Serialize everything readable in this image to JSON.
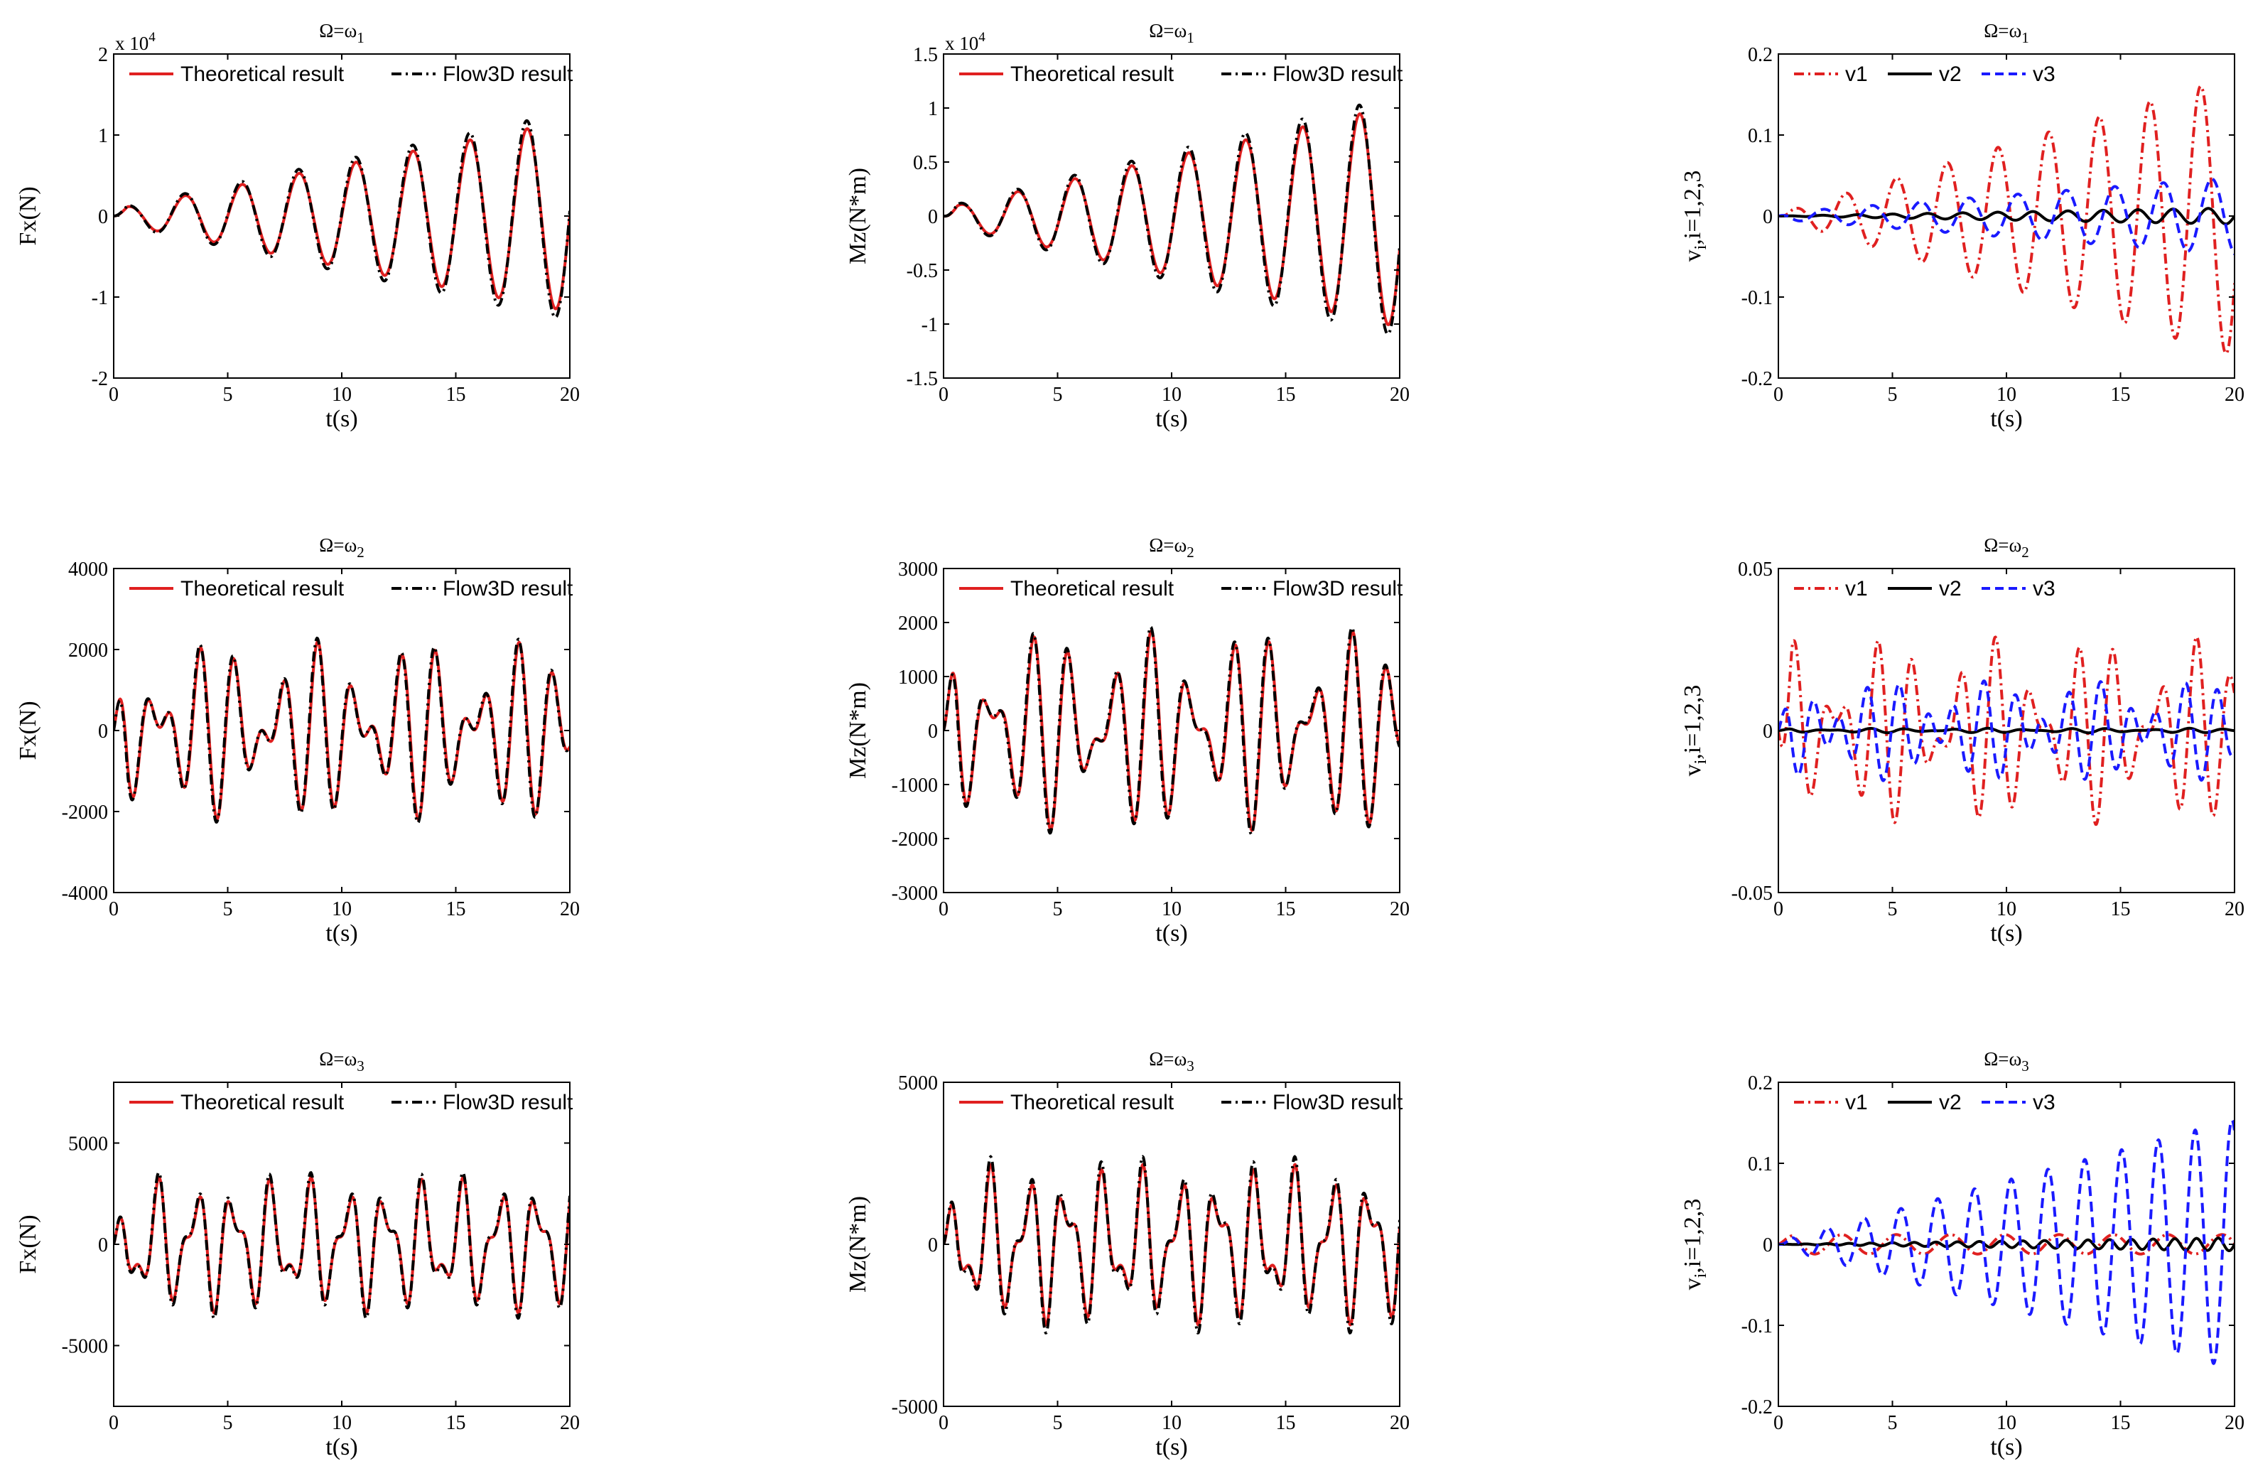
{
  "figure": {
    "rows": 3,
    "cols": 3,
    "row_titles": [
      {
        "base": "Ω=ω",
        "sub": "1"
      },
      {
        "base": "Ω=ω",
        "sub": "2"
      },
      {
        "base": "Ω=ω",
        "sub": "3"
      }
    ]
  },
  "colors": {
    "theoretical": "#e02020",
    "flow3d": "#000000",
    "v1": "#e02020",
    "v2": "#000000",
    "v3": "#1a1aff"
  },
  "chart_data": [
    {
      "id": "fx-1",
      "type": "line",
      "title": "Ω=ω1",
      "xlabel": "t(s)",
      "ylabel": "Fx(N)",
      "xlim": [
        0,
        20
      ],
      "ylim": [
        -2,
        2
      ],
      "yscale_label": "x 10",
      "yscale_exp": "4",
      "xticks": [
        "0",
        "5",
        "10",
        "15",
        "20"
      ],
      "yticks": [
        "-2",
        "-1",
        "0",
        "1",
        "2"
      ],
      "legend": [
        "Theoretical result",
        "Flow3D result"
      ],
      "series": [
        {
          "name": "Theoretical result",
          "style": "solid",
          "color": "#e02020",
          "model": {
            "kind": "growing_sine",
            "a0": 0.08,
            "growth": 0.055,
            "freq": 0.4,
            "phase": 0.0
          }
        },
        {
          "name": "Flow3D result",
          "style": "dashdot",
          "color": "#000000",
          "model": {
            "kind": "growing_sine",
            "a0": 0.09,
            "growth": 0.06,
            "freq": 0.4,
            "phase": 0.05
          }
        }
      ]
    },
    {
      "id": "mz-1",
      "type": "line",
      "title": "Ω=ω1",
      "xlabel": "t(s)",
      "ylabel": "Mz(N*m)",
      "xlim": [
        0,
        20
      ],
      "ylim": [
        -1.5,
        1.5
      ],
      "yscale_label": "x 10",
      "yscale_exp": "4",
      "xticks": [
        "0",
        "5",
        "10",
        "15",
        "20"
      ],
      "yticks": [
        "-1.5",
        "-1",
        "-0.5",
        "0",
        "0.5",
        "1",
        "1.5"
      ],
      "legend": [
        "Theoretical result",
        "Flow3D result"
      ],
      "series": [
        {
          "name": "Theoretical result",
          "style": "solid",
          "color": "#e02020",
          "model": {
            "kind": "growing_sine",
            "a0": 0.07,
            "growth": 0.048,
            "freq": 0.4,
            "phase": -0.3
          }
        },
        {
          "name": "Flow3D result",
          "style": "dashdot",
          "color": "#000000",
          "model": {
            "kind": "growing_sine",
            "a0": 0.08,
            "growth": 0.052,
            "freq": 0.4,
            "phase": -0.25
          }
        }
      ]
    },
    {
      "id": "v-1",
      "type": "line",
      "title": "Ω=ω1",
      "xlabel": "t(s)",
      "ylabel": "vi,i=1,2,3",
      "xlim": [
        0,
        20
      ],
      "ylim": [
        -0.2,
        0.2
      ],
      "xticks": [
        "0",
        "5",
        "10",
        "15",
        "20"
      ],
      "yticks": [
        "-0.2",
        "-0.1",
        "0",
        "0.1",
        "0.2"
      ],
      "legend": [
        "v1",
        "v2",
        "v3"
      ],
      "series": [
        {
          "name": "v1",
          "style": "dashdot",
          "color": "#e02020",
          "model": {
            "kind": "growing_sine",
            "a0": 0.003,
            "growth": 0.0085,
            "freq": 0.45,
            "phase": -0.5
          }
        },
        {
          "name": "v2",
          "style": "solid",
          "color": "#000000",
          "model": {
            "kind": "growing_sine",
            "a0": 0.0,
            "growth": 0.0005,
            "freq": 0.65,
            "phase": 0.0
          }
        },
        {
          "name": "v3",
          "style": "dashed",
          "color": "#1a1aff",
          "model": {
            "kind": "growing_sine",
            "a0": 0.004,
            "growth": 0.0022,
            "freq": 0.47,
            "phase": 2.0
          }
        }
      ]
    },
    {
      "id": "fx-2",
      "type": "line",
      "title": "Ω=ω2",
      "xlabel": "t(s)",
      "ylabel": "Fx(N)",
      "xlim": [
        0,
        20
      ],
      "ylim": [
        -4000,
        4000
      ],
      "xticks": [
        "0",
        "5",
        "10",
        "15",
        "20"
      ],
      "yticks": [
        "-4000",
        "-2000",
        "0",
        "2000",
        "4000"
      ],
      "legend": [
        "Theoretical result",
        "Flow3D result"
      ],
      "series": [
        {
          "name": "Theoretical result",
          "style": "solid",
          "color": "#e02020",
          "model": {
            "kind": "beat",
            "a1": 1150,
            "f1": 0.57,
            "a2": 1050,
            "f2": 0.79,
            "phase": 0.9
          }
        },
        {
          "name": "Flow3D result",
          "style": "dashdot",
          "color": "#000000",
          "model": {
            "kind": "beat",
            "a1": 1200,
            "f1": 0.57,
            "a2": 1080,
            "f2": 0.79,
            "phase": 1.0
          }
        }
      ]
    },
    {
      "id": "mz-2",
      "type": "line",
      "title": "Ω=ω2",
      "xlabel": "t(s)",
      "ylabel": "Mz(N*m)",
      "xlim": [
        0,
        20
      ],
      "ylim": [
        -3000,
        3000
      ],
      "xticks": [
        "0",
        "5",
        "10",
        "15",
        "20"
      ],
      "yticks": [
        "-3000",
        "-2000",
        "-1000",
        "0",
        "1000",
        "2000",
        "3000"
      ],
      "legend": [
        "Theoretical result",
        "Flow3D result"
      ],
      "series": [
        {
          "name": "Theoretical result",
          "style": "solid",
          "color": "#e02020",
          "model": {
            "kind": "beat",
            "a1": 1050,
            "f1": 0.57,
            "a2": 800,
            "f2": 0.79,
            "phase": 0.3
          }
        },
        {
          "name": "Flow3D result",
          "style": "dashdot",
          "color": "#000000",
          "model": {
            "kind": "beat",
            "a1": 1100,
            "f1": 0.57,
            "a2": 820,
            "f2": 0.79,
            "phase": 0.4
          }
        }
      ]
    },
    {
      "id": "v-2",
      "type": "line",
      "title": "Ω=ω2",
      "xlabel": "t(s)",
      "ylabel": "vi,i=1,2,3",
      "xlim": [
        0,
        20
      ],
      "ylim": [
        -0.05,
        0.05
      ],
      "xticks": [
        "0",
        "5",
        "10",
        "15",
        "20"
      ],
      "yticks": [
        "-0.05",
        "0",
        "0.05"
      ],
      "legend": [
        "v1",
        "v2",
        "v3"
      ],
      "series": [
        {
          "name": "v1",
          "style": "dashdot",
          "color": "#e02020",
          "model": {
            "kind": "beat",
            "a1": 0.016,
            "f1": 0.57,
            "a2": 0.013,
            "f2": 0.79,
            "phase": -1.2
          }
        },
        {
          "name": "v2",
          "style": "solid",
          "color": "#000000",
          "model": {
            "kind": "beat",
            "a1": 0.0004,
            "f1": 0.57,
            "a2": 0.0003,
            "f2": 0.79,
            "phase": 0.0
          }
        },
        {
          "name": "v3",
          "style": "dashed",
          "color": "#1a1aff",
          "model": {
            "kind": "beat",
            "a1": 0.0095,
            "f1": 0.79,
            "a2": 0.006,
            "f2": 0.57,
            "phase": 0.7
          }
        }
      ]
    },
    {
      "id": "fx-3",
      "type": "line",
      "title": "Ω=ω3",
      "xlabel": "t(s)",
      "ylabel": "Fx(N)",
      "xlim": [
        0,
        20
      ],
      "ylim": [
        -8000,
        8000
      ],
      "xticks": [
        "0",
        "5",
        "10",
        "15",
        "20"
      ],
      "yticks": [
        "-5000",
        "0",
        "5000"
      ],
      "legend": [
        "Theoretical result",
        "Flow3D result"
      ],
      "series": [
        {
          "name": "Theoretical result",
          "style": "solid",
          "color": "#e02020",
          "model": {
            "kind": "beat",
            "a1": 2200,
            "f1": 0.6,
            "a2": 1200,
            "f2": 1.05,
            "phase": 0.6
          }
        },
        {
          "name": "Flow3D result",
          "style": "dashdot",
          "color": "#000000",
          "model": {
            "kind": "beat",
            "a1": 2350,
            "f1": 0.6,
            "a2": 1300,
            "f2": 1.05,
            "phase": 0.65
          }
        }
      ]
    },
    {
      "id": "mz-3",
      "type": "line",
      "title": "Ω=ω3",
      "xlabel": "t(s)",
      "ylabel": "Mz(N*m)",
      "xlim": [
        0,
        20
      ],
      "ylim": [
        -5000,
        5000
      ],
      "xticks": [
        "0",
        "5",
        "10",
        "15",
        "20"
      ],
      "yticks": [
        "-5000",
        "0",
        "5000"
      ],
      "legend": [
        "Theoretical result",
        "Flow3D result"
      ],
      "series": [
        {
          "name": "Theoretical result",
          "style": "solid",
          "color": "#e02020",
          "model": {
            "kind": "beat",
            "a1": 1600,
            "f1": 0.6,
            "a2": 900,
            "f2": 1.05,
            "phase": 0.2
          }
        },
        {
          "name": "Flow3D result",
          "style": "dashdot",
          "color": "#000000",
          "model": {
            "kind": "beat",
            "a1": 1750,
            "f1": 0.6,
            "a2": 1000,
            "f2": 1.05,
            "phase": 0.25
          }
        }
      ]
    },
    {
      "id": "v-3",
      "type": "line",
      "title": "Ω=ω3",
      "xlabel": "t(s)",
      "ylabel": "vi,i=1,2,3",
      "xlim": [
        0,
        20
      ],
      "ylim": [
        -0.2,
        0.2
      ],
      "xticks": [
        "0",
        "5",
        "10",
        "15",
        "20"
      ],
      "yticks": [
        "-0.2",
        "-0.1",
        "0",
        "0.1",
        "0.2"
      ],
      "legend": [
        "v1",
        "v2",
        "v3"
      ],
      "series": [
        {
          "name": "v1",
          "style": "dashdot",
          "color": "#e02020",
          "model": {
            "kind": "growing_sine",
            "a0": 0.012,
            "growth": 0.0,
            "freq": 0.42,
            "phase": 0.5
          }
        },
        {
          "name": "v2",
          "style": "solid",
          "color": "#000000",
          "model": {
            "kind": "growing_sine",
            "a0": 0.0,
            "growth": 0.0004,
            "freq": 1.05,
            "phase": 0.0
          }
        },
        {
          "name": "v3",
          "style": "dashed",
          "color": "#1a1aff",
          "model": {
            "kind": "growing_sine",
            "a0": 0.004,
            "growth": 0.0075,
            "freq": 0.62,
            "phase": -0.5
          }
        }
      ]
    }
  ]
}
